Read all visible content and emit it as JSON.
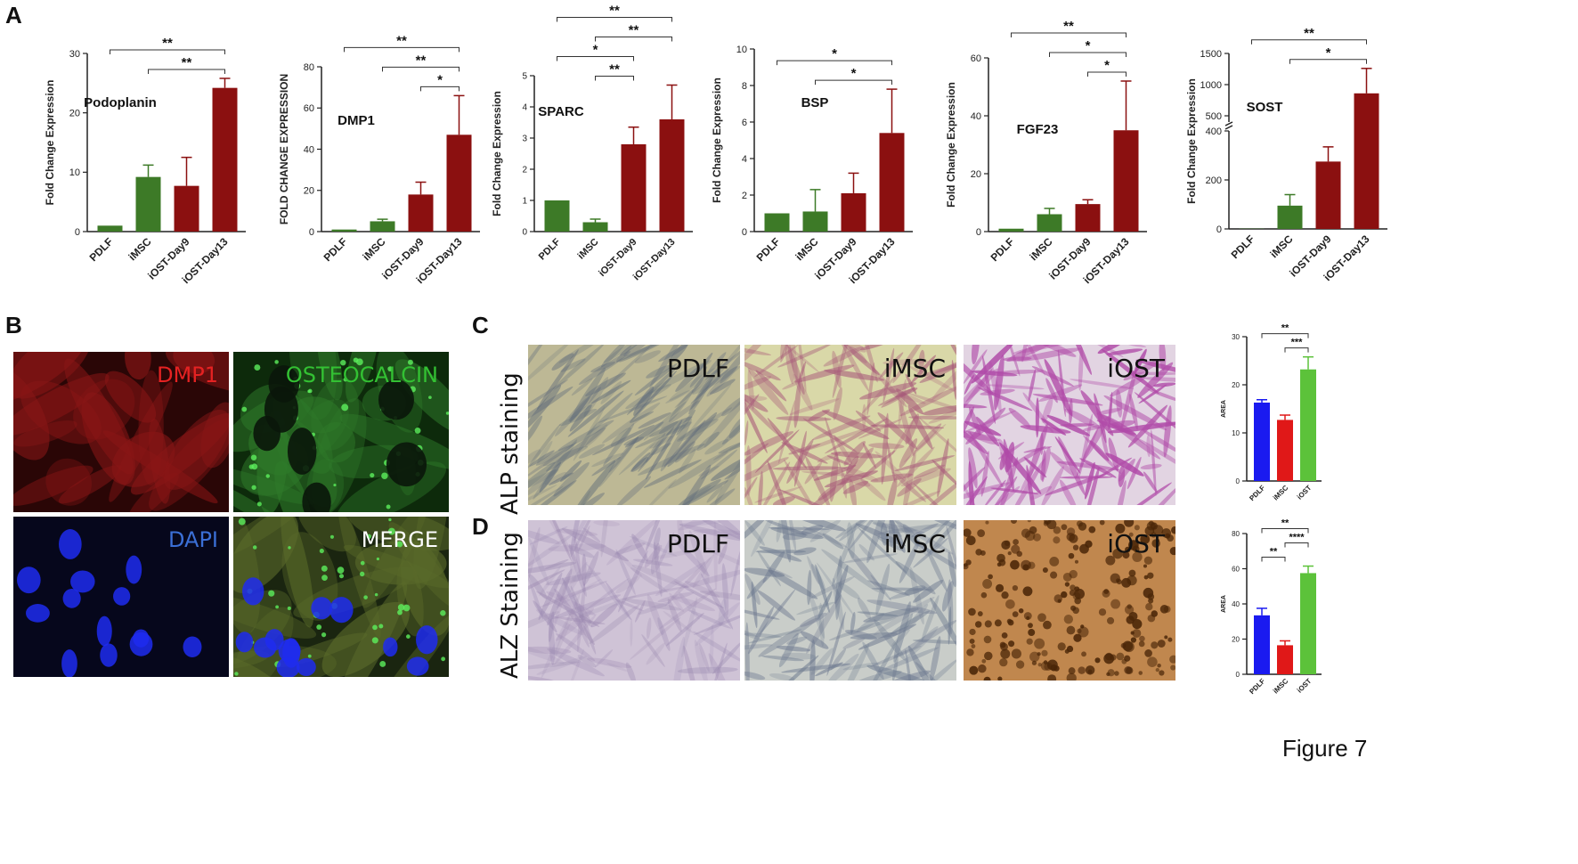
{
  "figure_label": "Figure 7",
  "panels": {
    "a": "A",
    "b": "B",
    "c": "C",
    "d": "D"
  },
  "colors": {
    "green": "#3d7a27",
    "red": "#8b1010",
    "blue": "#1a1af0",
    "bright_red": "#e01818",
    "bright_green": "#5cc23a"
  },
  "panel_b": {
    "tiles": [
      {
        "label": "DMP1",
        "color": "#e52222",
        "kind": "dmp1"
      },
      {
        "label": "OSTEOCALCIN",
        "color": "#33c133",
        "kind": "ocn"
      },
      {
        "label": "DAPI",
        "color": "#3b6fd6",
        "kind": "dapi"
      },
      {
        "label": "MERGE",
        "color": "#ffffff",
        "kind": "merge"
      }
    ]
  },
  "panel_c": {
    "row_label": "ALP staining",
    "tiles": [
      "PDLF",
      "iMSC",
      "iOST"
    ]
  },
  "panel_d": {
    "row_label": "ALZ Staining",
    "tiles": [
      "PDLF",
      "iMSC",
      "iOST"
    ]
  },
  "chart_data": [
    {
      "type": "bar",
      "title": "Podoplanin",
      "ylabel": "Fold Change Expression",
      "categories": [
        "PDLF",
        "iMSC",
        "iOST-Day9",
        "iOST-Day13"
      ],
      "values": [
        1,
        9.2,
        7.7,
        24.2
      ],
      "errors": [
        0,
        2,
        4.8,
        1.6
      ],
      "colors": [
        "green",
        "green",
        "red",
        "red"
      ],
      "ylim": [
        0,
        30
      ],
      "yticks": [
        0,
        10,
        20,
        30
      ],
      "significance": [
        {
          "from": 0,
          "to": 3,
          "label": "**"
        },
        {
          "from": 1,
          "to": 3,
          "label": "**"
        }
      ]
    },
    {
      "type": "bar",
      "title": "DMP1",
      "ylabel": "FOLD CHANGE EXPRESSION",
      "categories": [
        "PDLF",
        "iMSC",
        "iOST-Day9",
        "iOST-Day13"
      ],
      "values": [
        1,
        5,
        18,
        47
      ],
      "errors": [
        0,
        1,
        6,
        19
      ],
      "colors": [
        "green",
        "green",
        "red",
        "red"
      ],
      "ylim": [
        0,
        80
      ],
      "yticks": [
        0,
        20,
        40,
        60,
        80
      ],
      "significance": [
        {
          "from": 0,
          "to": 3,
          "label": "**"
        },
        {
          "from": 1,
          "to": 3,
          "label": "**"
        },
        {
          "from": 2,
          "to": 3,
          "label": "*"
        }
      ]
    },
    {
      "type": "bar",
      "title": "SPARC",
      "ylabel": "Fold Change Expression",
      "categories": [
        "PDLF",
        "iMSC",
        "iOST-Day9",
        "iOST-Day13"
      ],
      "values": [
        1,
        0.3,
        2.8,
        3.6
      ],
      "errors": [
        0,
        0.1,
        0.55,
        1.1
      ],
      "colors": [
        "green",
        "green",
        "red",
        "red"
      ],
      "ylim": [
        0,
        5
      ],
      "yticks": [
        0,
        1,
        2,
        3,
        4,
        5
      ],
      "significance": [
        {
          "from": 0,
          "to": 3,
          "label": "**"
        },
        {
          "from": 0,
          "to": 2,
          "label": "*"
        },
        {
          "from": 1,
          "to": 3,
          "label": "**"
        },
        {
          "from": 1,
          "to": 2,
          "label": "**"
        }
      ]
    },
    {
      "type": "bar",
      "title": "BSP",
      "ylabel": "Fold Change Expression",
      "categories": [
        "PDLF",
        "iMSC",
        "iOST-Day9",
        "iOST-Day13"
      ],
      "values": [
        1,
        1.1,
        2.1,
        5.4
      ],
      "errors": [
        0,
        1.2,
        1.1,
        2.4
      ],
      "colors": [
        "green",
        "green",
        "red",
        "red"
      ],
      "ylim": [
        0,
        10
      ],
      "yticks": [
        0,
        2,
        4,
        6,
        8,
        10
      ],
      "significance": [
        {
          "from": 0,
          "to": 3,
          "label": "*"
        },
        {
          "from": 1,
          "to": 3,
          "label": "*"
        }
      ]
    },
    {
      "type": "bar",
      "title": "FGF23",
      "ylabel": "Fold Change Expression",
      "categories": [
        "PDLF",
        "iMSC",
        "iOST-Day9",
        "iOST-Day13"
      ],
      "values": [
        1,
        6,
        9.5,
        35
      ],
      "errors": [
        0,
        2,
        1.5,
        17
      ],
      "colors": [
        "green",
        "green",
        "red",
        "red"
      ],
      "ylim": [
        0,
        60
      ],
      "yticks": [
        0,
        20,
        40,
        60
      ],
      "significance": [
        {
          "from": 0,
          "to": 3,
          "label": "**"
        },
        {
          "from": 1,
          "to": 3,
          "label": "*"
        },
        {
          "from": 2,
          "to": 3,
          "label": "*"
        }
      ]
    },
    {
      "type": "bar",
      "title": "SOST",
      "ylabel": "Fold Change Expression",
      "categories": [
        "PDLF",
        "iMSC",
        "iOST-Day9",
        "iOST-Day13"
      ],
      "values": [
        1,
        95,
        275,
        860
      ],
      "errors": [
        0,
        45,
        60,
        400
      ],
      "colors": [
        "green",
        "green",
        "red",
        "red"
      ],
      "axis_break": {
        "lower": [
          0,
          400
        ],
        "upper": [
          400,
          1500
        ]
      },
      "yticks": [
        0,
        200,
        400,
        500,
        1000,
        1500
      ],
      "significance": [
        {
          "from": 0,
          "to": 3,
          "label": "**"
        },
        {
          "from": 1,
          "to": 3,
          "label": "*"
        }
      ]
    },
    {
      "type": "bar",
      "title": "",
      "ylabel": "AREA",
      "categories": [
        "PDLF",
        "iMSC",
        "iOST"
      ],
      "values": [
        16.3,
        12.7,
        23.2
      ],
      "errors": [
        0.6,
        1,
        2.6
      ],
      "colors": [
        "blue",
        "bright_red",
        "bright_green"
      ],
      "ylim": [
        0,
        30
      ],
      "yticks": [
        0,
        10,
        20,
        30
      ],
      "significance": [
        {
          "from": 0,
          "to": 2,
          "label": "**"
        },
        {
          "from": 1,
          "to": 2,
          "label": "***"
        }
      ]
    },
    {
      "type": "bar",
      "title": "",
      "ylabel": "AREA",
      "categories": [
        "PDLF",
        "iMSC",
        "iOST"
      ],
      "values": [
        33.5,
        16.5,
        57.5
      ],
      "errors": [
        4,
        2.5,
        4
      ],
      "colors": [
        "blue",
        "bright_red",
        "bright_green"
      ],
      "ylim": [
        0,
        80
      ],
      "yticks": [
        0,
        20,
        40,
        60,
        80
      ],
      "significance": [
        {
          "from": 0,
          "to": 2,
          "label": "**"
        },
        {
          "from": 0,
          "to": 1,
          "label": "**"
        },
        {
          "from": 1,
          "to": 2,
          "label": "****"
        }
      ]
    }
  ]
}
